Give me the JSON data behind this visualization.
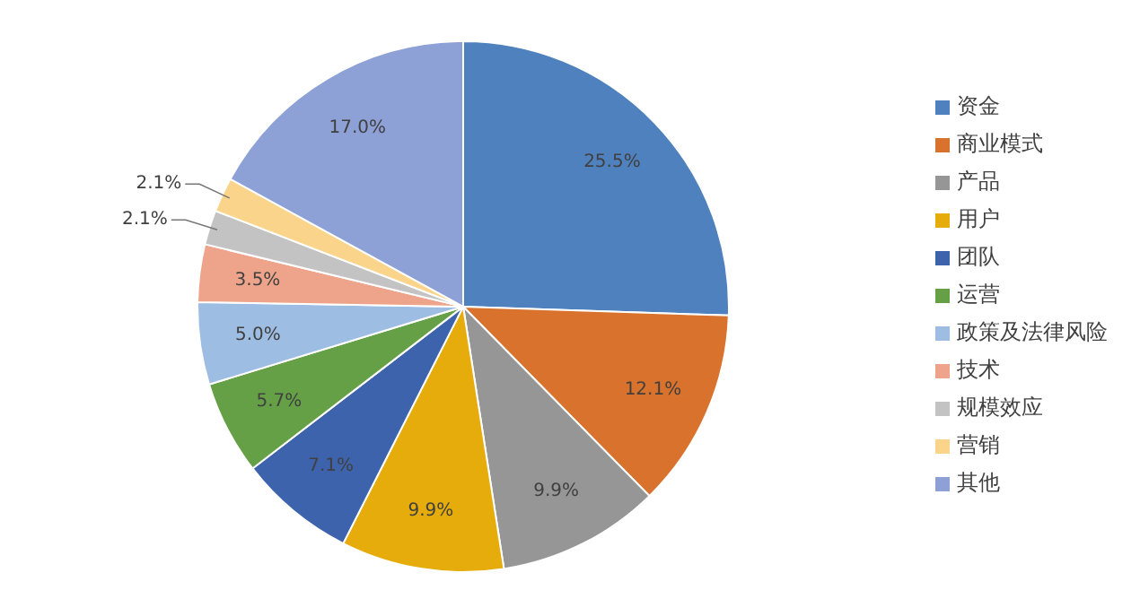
{
  "chart_data": {
    "type": "pie",
    "categories": [
      "资金",
      "商业模式",
      "产品",
      "用户",
      "团队",
      "运营",
      "政策及法律风险",
      "技术",
      "规模效应",
      "营销",
      "其他"
    ],
    "values": [
      25.5,
      12.1,
      9.9,
      9.9,
      7.1,
      5.7,
      5.0,
      3.5,
      2.1,
      2.1,
      17.0
    ],
    "value_labels": [
      "25.5%",
      "12.1%",
      "9.9%",
      "9.9%",
      "7.1%",
      "5.7%",
      "5.0%",
      "3.5%",
      "2.1%",
      "2.1%",
      "17.0%"
    ],
    "colors": [
      "#4e81bd",
      "#d9722c",
      "#969696",
      "#e6ac0c",
      "#3d63ad",
      "#65a047",
      "#9dbde3",
      "#eda48a",
      "#c3c3c3",
      "#fad48a",
      "#8ea1d6"
    ],
    "legend": "right"
  }
}
